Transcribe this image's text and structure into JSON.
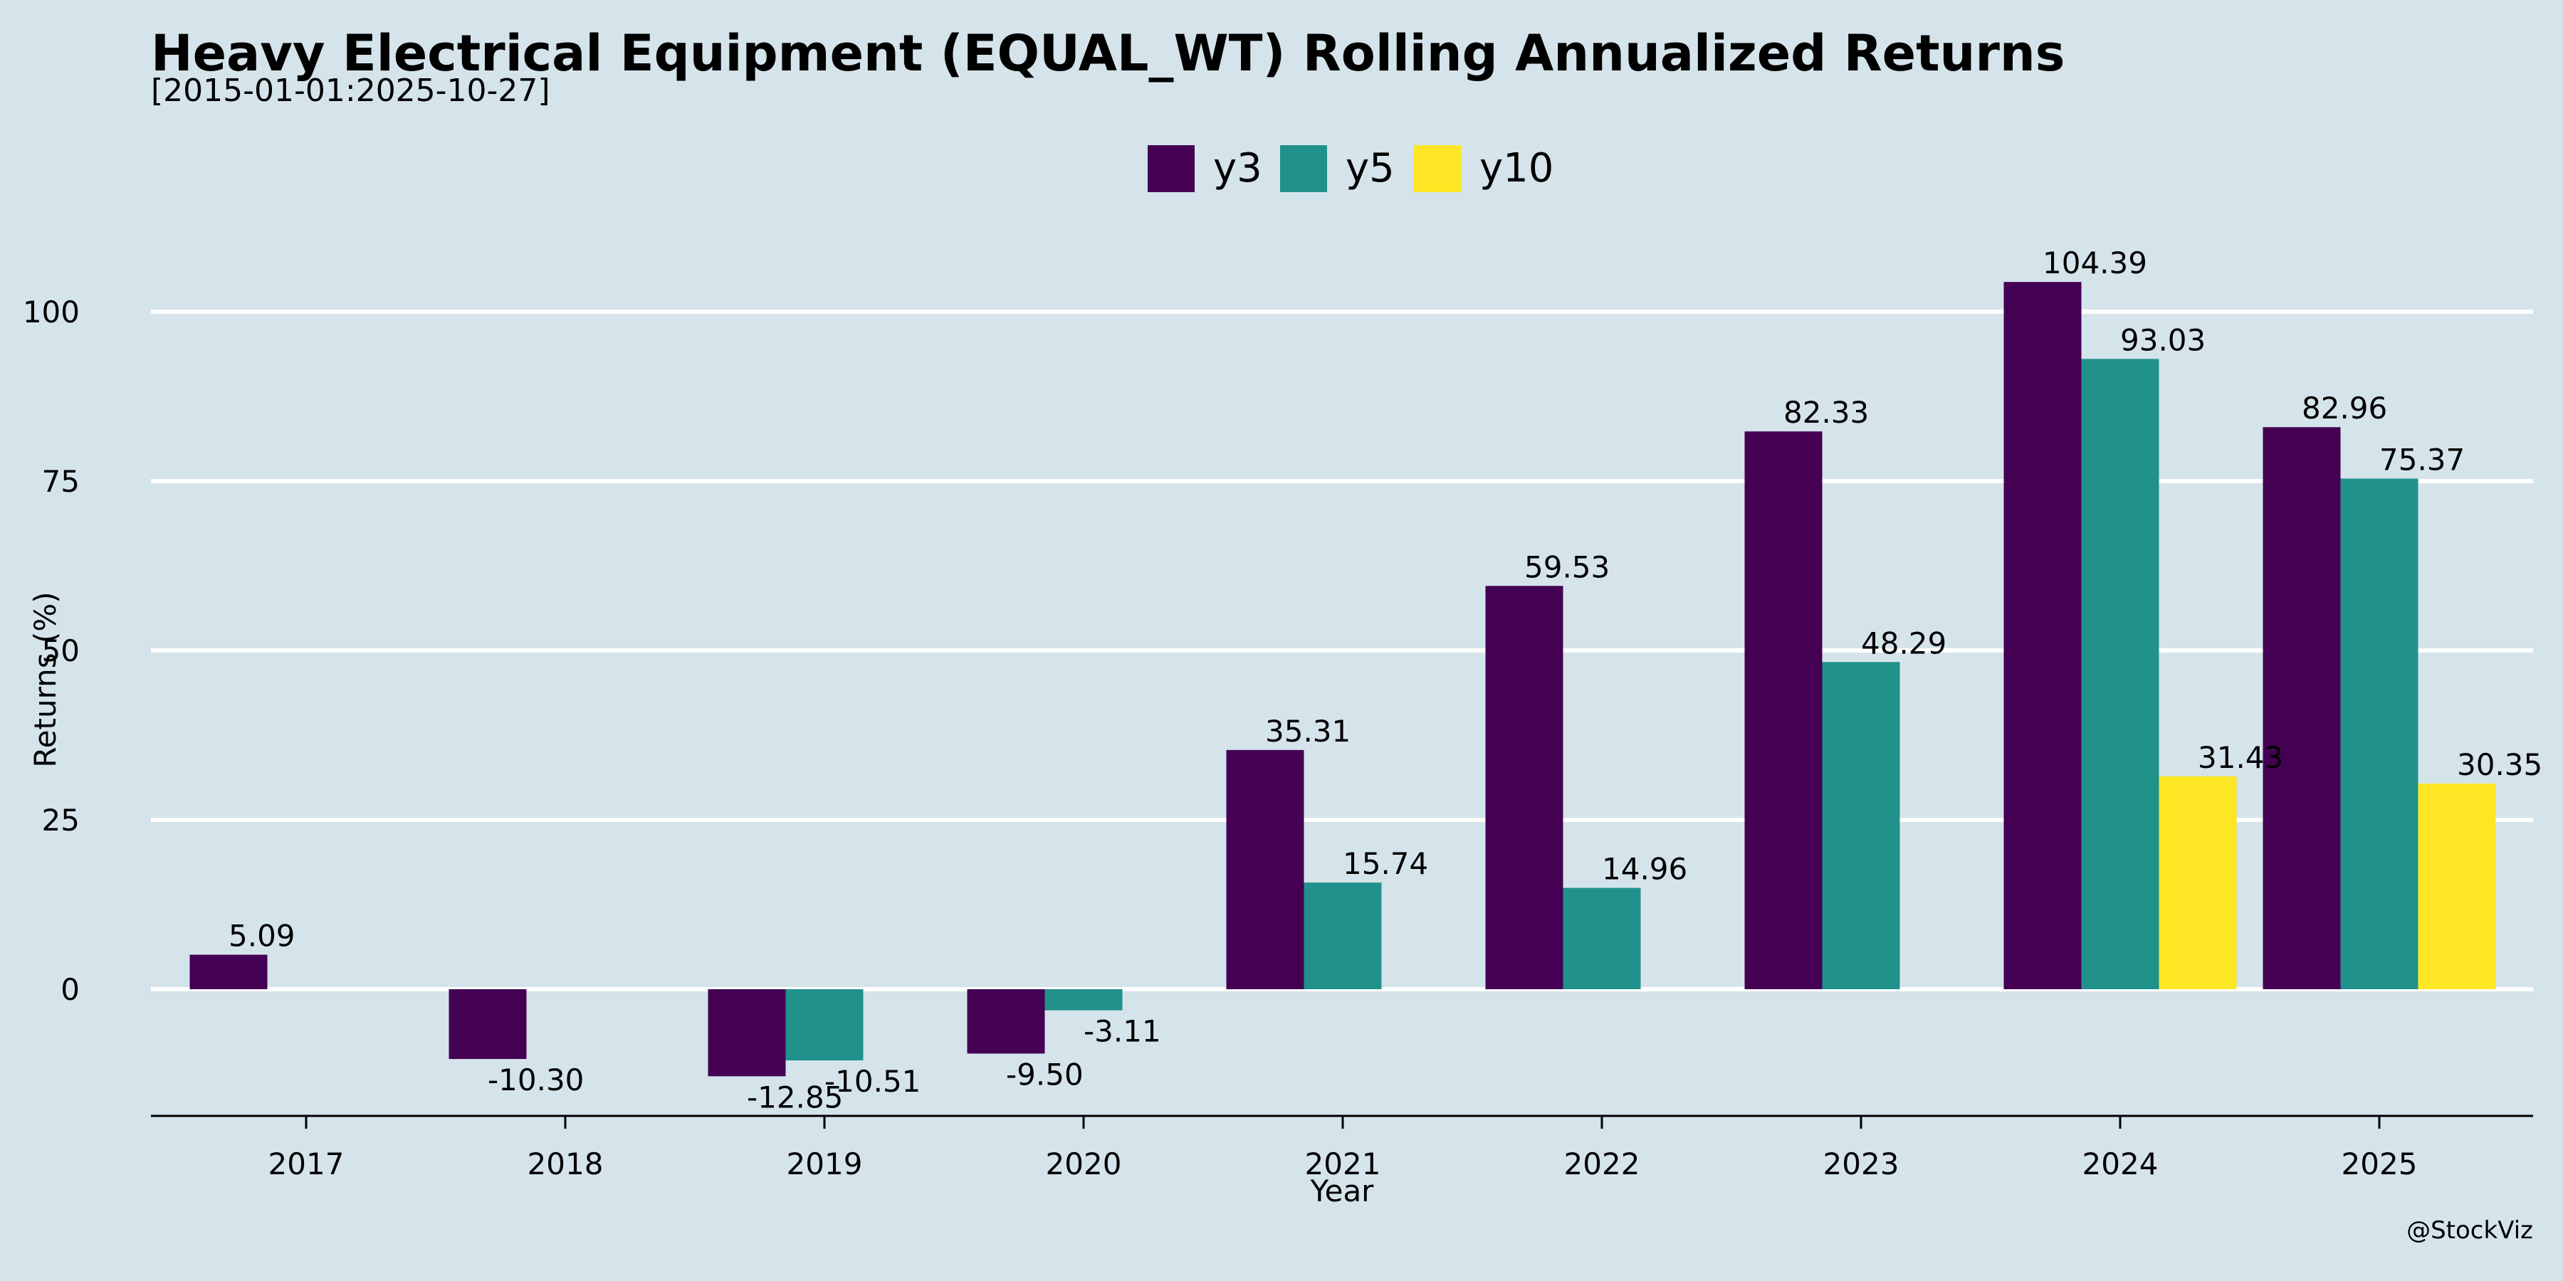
{
  "header": {
    "title": "Heavy Electrical Equipment (EQUAL_WT) Rolling Annualized Returns",
    "subtitle": "[2015-01-01:2025-10-27]"
  },
  "footer": {
    "watermark": "@StockViz"
  },
  "chart_data": {
    "type": "bar",
    "xlabel": "Year",
    "ylabel": "Returns (%)",
    "ylim": [
      -18,
      115
    ],
    "yticks": [
      0,
      25,
      50,
      75,
      100
    ],
    "grid": "horizontal",
    "legend_position": "top-center",
    "categories": [
      "2017",
      "2018",
      "2019",
      "2020",
      "2021",
      "2022",
      "2023",
      "2024",
      "2025"
    ],
    "series": [
      {
        "name": "y3",
        "color": "#440154",
        "values": [
          5.09,
          -10.3,
          -12.85,
          -9.5,
          35.31,
          59.53,
          82.33,
          104.39,
          82.96
        ],
        "labels": [
          "5.09",
          "-10.30",
          "-12.85",
          "-9.50",
          "35.31",
          "59.53",
          "82.33",
          "104.39",
          "82.96"
        ]
      },
      {
        "name": "y5",
        "color": "#21918c",
        "values": [
          null,
          null,
          -10.51,
          -3.11,
          15.74,
          14.96,
          48.29,
          93.03,
          75.37
        ],
        "labels": [
          null,
          null,
          "-10.51",
          "-3.11",
          "15.74",
          "14.96",
          "48.29",
          "93.03",
          "75.37"
        ]
      },
      {
        "name": "y10",
        "color": "#fde725",
        "values": [
          null,
          null,
          null,
          null,
          null,
          null,
          null,
          31.43,
          30.35
        ],
        "labels": [
          null,
          null,
          null,
          null,
          null,
          null,
          null,
          "31.43",
          "30.35"
        ]
      }
    ]
  }
}
